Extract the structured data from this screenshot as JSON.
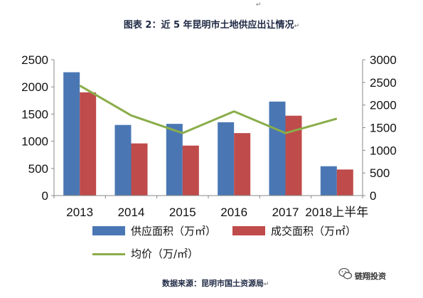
{
  "title": "图表 2：近 5 年昆明市土地供应出让情况",
  "source": "数据来源：昆明市国土资源局",
  "watermark": "链翔投资",
  "colors": {
    "supply": "#4a77b4",
    "deal": "#bf4b4a",
    "price": "#8aad4a"
  },
  "chart_data": {
    "type": "bar",
    "categories": [
      "2013",
      "2014",
      "2015",
      "2016",
      "2017",
      "2018上半年"
    ],
    "series": [
      {
        "name": "供应面积（万㎡）",
        "type": "bar",
        "axis": "left",
        "values": [
          2270,
          1300,
          1320,
          1350,
          1730,
          540
        ]
      },
      {
        "name": "成交面积（万㎡）",
        "type": "bar",
        "axis": "left",
        "values": [
          1900,
          960,
          920,
          1150,
          1470,
          480
        ]
      },
      {
        "name": "均价（万/㎡）",
        "type": "line",
        "axis": "right",
        "values": [
          2430,
          1770,
          1380,
          1860,
          1380,
          1700
        ]
      }
    ],
    "ylim_left": [
      0,
      2500
    ],
    "yticks_left": [
      "0",
      "500",
      "1000",
      "1500",
      "2000",
      "2500"
    ],
    "ylim_right": [
      0,
      3000
    ],
    "yticks_right": [
      "0",
      "500",
      "1000",
      "1500",
      "2000",
      "2500",
      "3000"
    ],
    "legend_position": "bottom",
    "grid": false
  }
}
